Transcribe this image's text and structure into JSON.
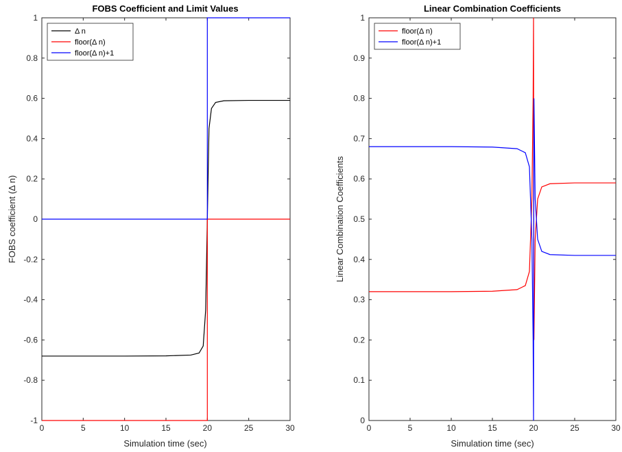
{
  "chart_data": [
    {
      "type": "line",
      "title": "FOBS Coefficient and Limit Values",
      "xlabel": "Simulation time (sec)",
      "ylabel": "FOBS coefficient (Δ n)",
      "xlim": [
        0,
        30
      ],
      "ylim": [
        -1,
        1
      ],
      "xticks": [
        "0",
        "5",
        "10",
        "15",
        "20",
        "25",
        "30"
      ],
      "yticks": [
        "-1",
        "-0.8",
        "-0.6",
        "-0.4",
        "-0.2",
        "0",
        "0.2",
        "0.4",
        "0.6",
        "0.8",
        "1"
      ],
      "grid": false,
      "legend_position": "top-left",
      "series": [
        {
          "name": "Δ n",
          "color": "#000000",
          "x": [
            0,
            5,
            10,
            15,
            18,
            19,
            19.5,
            19.8,
            20,
            20.2,
            20.5,
            21,
            22,
            25,
            30
          ],
          "y": [
            -0.68,
            -0.68,
            -0.68,
            -0.679,
            -0.675,
            -0.665,
            -0.63,
            -0.45,
            0,
            0.45,
            0.55,
            0.58,
            0.588,
            0.59,
            0.59
          ]
        },
        {
          "name": "floor(Δ n)",
          "color": "#ff0000",
          "x": [
            0,
            20,
            20,
            30
          ],
          "y": [
            -1,
            -1,
            0,
            0
          ]
        },
        {
          "name": "floor(Δ n)+1",
          "color": "#0000ff",
          "x": [
            0,
            20,
            20,
            30
          ],
          "y": [
            0,
            0,
            1,
            1
          ]
        }
      ]
    },
    {
      "type": "line",
      "title": "Linear Combination Coefficients",
      "xlabel": "Simulation time (sec)",
      "ylabel": "Linear Combination Coefficients",
      "xlim": [
        0,
        30
      ],
      "ylim": [
        0,
        1
      ],
      "xticks": [
        "0",
        "5",
        "10",
        "15",
        "20",
        "25",
        "30"
      ],
      "yticks": [
        "0",
        "0.1",
        "0.2",
        "0.3",
        "0.4",
        "0.5",
        "0.6",
        "0.7",
        "0.8",
        "0.9",
        "1"
      ],
      "grid": false,
      "legend_position": "top-left",
      "series": [
        {
          "name": "floor(Δ n)",
          "color": "#ff0000",
          "x": [
            0,
            5,
            10,
            15,
            18,
            19,
            19.5,
            19.8,
            19.95,
            20,
            20.05,
            20.2,
            20.5,
            21,
            22,
            25,
            30
          ],
          "y": [
            0.32,
            0.32,
            0.32,
            0.321,
            0.325,
            0.335,
            0.37,
            0.55,
            0.8,
            1,
            0.2,
            0.45,
            0.55,
            0.58,
            0.588,
            0.59,
            0.59
          ]
        },
        {
          "name": "floor(Δ n)+1",
          "color": "#0000ff",
          "x": [
            0,
            5,
            10,
            15,
            18,
            19,
            19.5,
            19.8,
            19.95,
            20,
            20.05,
            20.2,
            20.5,
            21,
            22,
            25,
            30
          ],
          "y": [
            0.68,
            0.68,
            0.68,
            0.679,
            0.675,
            0.665,
            0.63,
            0.45,
            0.2,
            0,
            0.8,
            0.55,
            0.45,
            0.42,
            0.412,
            0.41,
            0.41
          ]
        }
      ]
    }
  ]
}
